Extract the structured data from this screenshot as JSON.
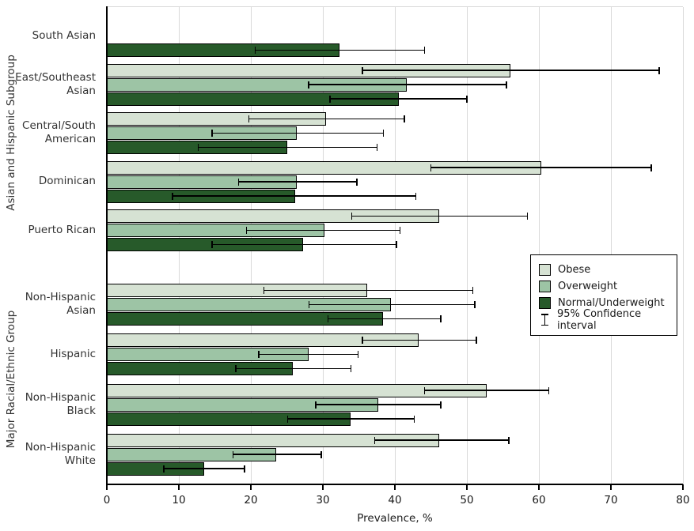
{
  "chart_data": {
    "type": "bar",
    "orientation": "horizontal",
    "xlabel": "Prevalence, %",
    "xlim": [
      0,
      80
    ],
    "x_ticks": [
      0,
      10,
      20,
      30,
      40,
      50,
      60,
      70,
      80
    ],
    "grid": "vertical gridlines every 10, light gray",
    "ylabel_sections": [
      "Asian and Hispanic Subgroup",
      "Major Racial/Ethnic Group"
    ],
    "series_names": [
      "Obese",
      "Overweight",
      "Normal/Underweight"
    ],
    "legend": {
      "position": "middle-right",
      "items": [
        {
          "label": "Obese",
          "color": "#d6e2d3"
        },
        {
          "label": "Overweight",
          "color": "#9dc4a5"
        },
        {
          "label": "Normal/Underweight",
          "color": "#275a2a"
        }
      ],
      "ci_label": "95% Confidence interval"
    },
    "groups": [
      {
        "section": 0,
        "category": "South Asian",
        "values": [
          null,
          null,
          32.3
        ],
        "ci": [
          null,
          null,
          [
            20.6,
            44.1
          ]
        ]
      },
      {
        "section": 0,
        "category": "East/Southeast Asian",
        "values": [
          56.0,
          41.7,
          40.5
        ],
        "ci": [
          [
            35.5,
            76.7
          ],
          [
            28.0,
            55.5
          ],
          [
            31.0,
            50.0
          ]
        ]
      },
      {
        "section": 0,
        "category": "Central/South American",
        "values": [
          30.4,
          26.4,
          25.0
        ],
        "ci": [
          [
            19.7,
            41.3
          ],
          [
            14.6,
            38.4
          ],
          [
            12.7,
            37.5
          ]
        ]
      },
      {
        "section": 0,
        "category": "Dominican",
        "values": [
          60.3,
          26.4,
          26.1
        ],
        "ci": [
          [
            45.0,
            75.6
          ],
          [
            18.3,
            34.7
          ],
          [
            9.1,
            42.9
          ]
        ]
      },
      {
        "section": 0,
        "category": "Puerto Rican",
        "values": [
          46.2,
          30.2,
          27.3
        ],
        "ci": [
          [
            34.0,
            58.4
          ],
          [
            19.4,
            40.7
          ],
          [
            14.6,
            40.2
          ]
        ]
      },
      {
        "section": 1,
        "category": "Non-Hispanic Asian",
        "values": [
          36.2,
          39.4,
          38.4
        ],
        "ci": [
          [
            21.8,
            50.8
          ],
          [
            28.1,
            51.1
          ],
          [
            30.7,
            46.4
          ]
        ]
      },
      {
        "section": 1,
        "category": "Hispanic",
        "values": [
          43.3,
          28.0,
          25.8
        ],
        "ci": [
          [
            35.5,
            51.3
          ],
          [
            21.1,
            34.9
          ],
          [
            17.9,
            33.9
          ]
        ]
      },
      {
        "section": 1,
        "category": "Non-Hispanic Black",
        "values": [
          52.7,
          37.7,
          33.8
        ],
        "ci": [
          [
            44.1,
            61.4
          ],
          [
            29.0,
            46.4
          ],
          [
            25.1,
            42.7
          ]
        ]
      },
      {
        "section": 1,
        "category": "Non-Hispanic White",
        "values": [
          46.2,
          23.5,
          13.5
        ],
        "ci": [
          [
            37.2,
            55.8
          ],
          [
            17.5,
            29.8
          ],
          [
            7.9,
            19.1
          ]
        ]
      }
    ]
  }
}
